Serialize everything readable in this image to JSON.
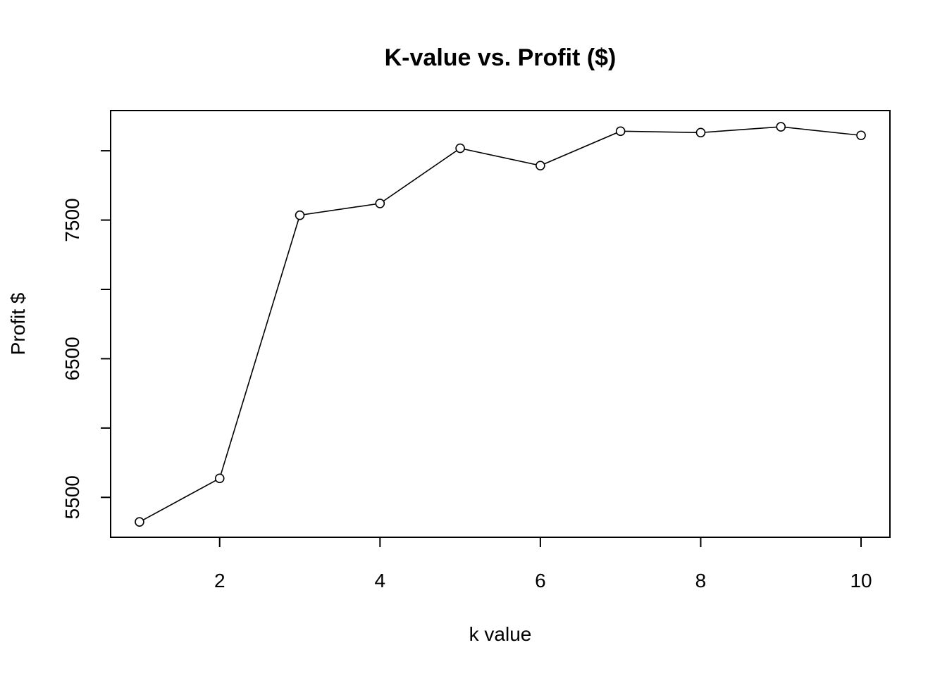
{
  "chart_data": {
    "type": "line",
    "title": "K-value vs. Profit ($)",
    "xlabel": "k value",
    "ylabel": "Profit $",
    "x": [
      1,
      2,
      3,
      4,
      5,
      6,
      7,
      8,
      9,
      10
    ],
    "y": [
      5323,
      5637,
      7535,
      7620,
      8018,
      7893,
      8141,
      8131,
      8173,
      8111
    ],
    "xlim": [
      0.64,
      10.36
    ],
    "ylim": [
      5212,
      8290
    ],
    "x_ticks": [
      2,
      4,
      6,
      8,
      10
    ],
    "x_tick_labels": [
      "2",
      "4",
      "6",
      "8",
      "10"
    ],
    "y_ticks": [
      5500,
      6000,
      6500,
      7000,
      7500,
      8000
    ],
    "y_tick_labels": [
      "5500",
      "",
      "6500",
      "",
      "7500",
      ""
    ],
    "markers": "open-circle",
    "grid": false,
    "legend": "none",
    "line_color": "#000000"
  }
}
